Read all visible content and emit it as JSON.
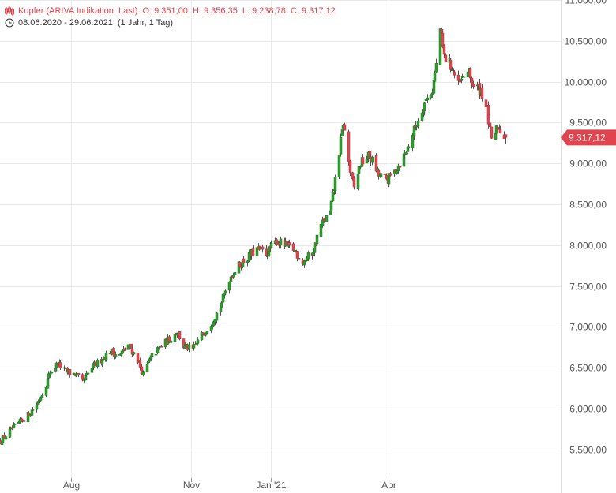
{
  "legend": {
    "instrument": "Kupfer (ARIVA Indikation, Last)",
    "open": "O: 9.351,00",
    "high": "H: 9.356,35",
    "low": "L: 9.238,78",
    "close": "C: 9.317,12",
    "range": "08.06.2020 - 29.06.2021",
    "interval": "(1 Jahr, 1 Tag)",
    "chart_icon": "candlestick-icon",
    "time_icon": "clock-icon"
  },
  "last_price_tag": "9.317,12",
  "colors": {
    "up": "#2e9e2e",
    "down": "#e0454f",
    "grid": "#e9e9e9",
    "axis_text": "#555555",
    "tag": "#e0454f"
  },
  "chart_data": {
    "type": "candlestick",
    "ylim": [
      5150,
      11000
    ],
    "yticks": [
      5500,
      6000,
      6500,
      7000,
      7500,
      8000,
      8500,
      9000,
      9500,
      10000,
      10500,
      11000
    ],
    "ytick_labels": [
      "5.500,00",
      "6.000,00",
      "6.500,00",
      "7.000,00",
      "7.500,00",
      "8.000,00",
      "8.500,00",
      "9.000,00",
      "9.500,00",
      "10.000,00",
      "10.500,00",
      "11.000,00"
    ],
    "xlim": [
      "2020-06-08",
      "2021-06-29"
    ],
    "xticks": [
      {
        "date": "2020-08-01",
        "label": "Aug"
      },
      {
        "date": "2020-11-01",
        "label": "Nov"
      },
      {
        "date": "2021-01-01",
        "label": "Jan '21"
      },
      {
        "date": "2021-04-01",
        "label": "Apr"
      }
    ],
    "close_path": [
      [
        "2020-06-08",
        5600
      ],
      [
        "2020-06-15",
        5720
      ],
      [
        "2020-06-22",
        5820
      ],
      [
        "2020-06-29",
        5920
      ],
      [
        "2020-07-06",
        6050
      ],
      [
        "2020-07-13",
        6300
      ],
      [
        "2020-07-16",
        6450
      ],
      [
        "2020-07-22",
        6550
      ],
      [
        "2020-07-28",
        6450
      ],
      [
        "2020-08-04",
        6420
      ],
      [
        "2020-08-10",
        6320
      ],
      [
        "2020-08-17",
        6500
      ],
      [
        "2020-08-24",
        6600
      ],
      [
        "2020-08-31",
        6700
      ],
      [
        "2020-09-07",
        6650
      ],
      [
        "2020-09-14",
        6780
      ],
      [
        "2020-09-21",
        6600
      ],
      [
        "2020-09-25",
        6420
      ],
      [
        "2020-10-01",
        6620
      ],
      [
        "2020-10-08",
        6750
      ],
      [
        "2020-10-15",
        6850
      ],
      [
        "2020-10-21",
        6950
      ],
      [
        "2020-10-26",
        6760
      ],
      [
        "2020-11-02",
        6720
      ],
      [
        "2020-11-09",
        6900
      ],
      [
        "2020-11-16",
        7050
      ],
      [
        "2020-11-23",
        7250
      ],
      [
        "2020-11-30",
        7600
      ],
      [
        "2020-12-07",
        7750
      ],
      [
        "2020-12-14",
        7850
      ],
      [
        "2020-12-21",
        7950
      ],
      [
        "2020-12-28",
        7900
      ],
      [
        "2021-01-05",
        8050
      ],
      [
        "2021-01-11",
        8000
      ],
      [
        "2021-01-18",
        7950
      ],
      [
        "2021-01-25",
        7800
      ],
      [
        "2021-02-01",
        7900
      ],
      [
        "2021-02-08",
        8250
      ],
      [
        "2021-02-15",
        8400
      ],
      [
        "2021-02-19",
        8800
      ],
      [
        "2021-02-25",
        9500
      ],
      [
        "2021-03-02",
        8900
      ],
      [
        "2021-03-05",
        8700
      ],
      [
        "2021-03-10",
        9000
      ],
      [
        "2021-03-17",
        9100
      ],
      [
        "2021-03-24",
        8850
      ],
      [
        "2021-03-31",
        8800
      ],
      [
        "2021-04-07",
        8950
      ],
      [
        "2021-04-14",
        9150
      ],
      [
        "2021-04-21",
        9450
      ],
      [
        "2021-04-28",
        9750
      ],
      [
        "2021-05-04",
        9900
      ],
      [
        "2021-05-07",
        10200
      ],
      [
        "2021-05-10",
        10650
      ],
      [
        "2021-05-13",
        10300
      ],
      [
        "2021-05-18",
        10200
      ],
      [
        "2021-05-24",
        9950
      ],
      [
        "2021-05-31",
        10150
      ],
      [
        "2021-06-04",
        9950
      ],
      [
        "2021-06-10",
        9900
      ],
      [
        "2021-06-15",
        9650
      ],
      [
        "2021-06-18",
        9250
      ],
      [
        "2021-06-23",
        9450
      ],
      [
        "2021-06-29",
        9317
      ]
    ],
    "last_candle": {
      "date": "2021-06-29",
      "open": 9351.0,
      "high": 9356.35,
      "low": 9238.78,
      "close": 9317.12
    }
  }
}
